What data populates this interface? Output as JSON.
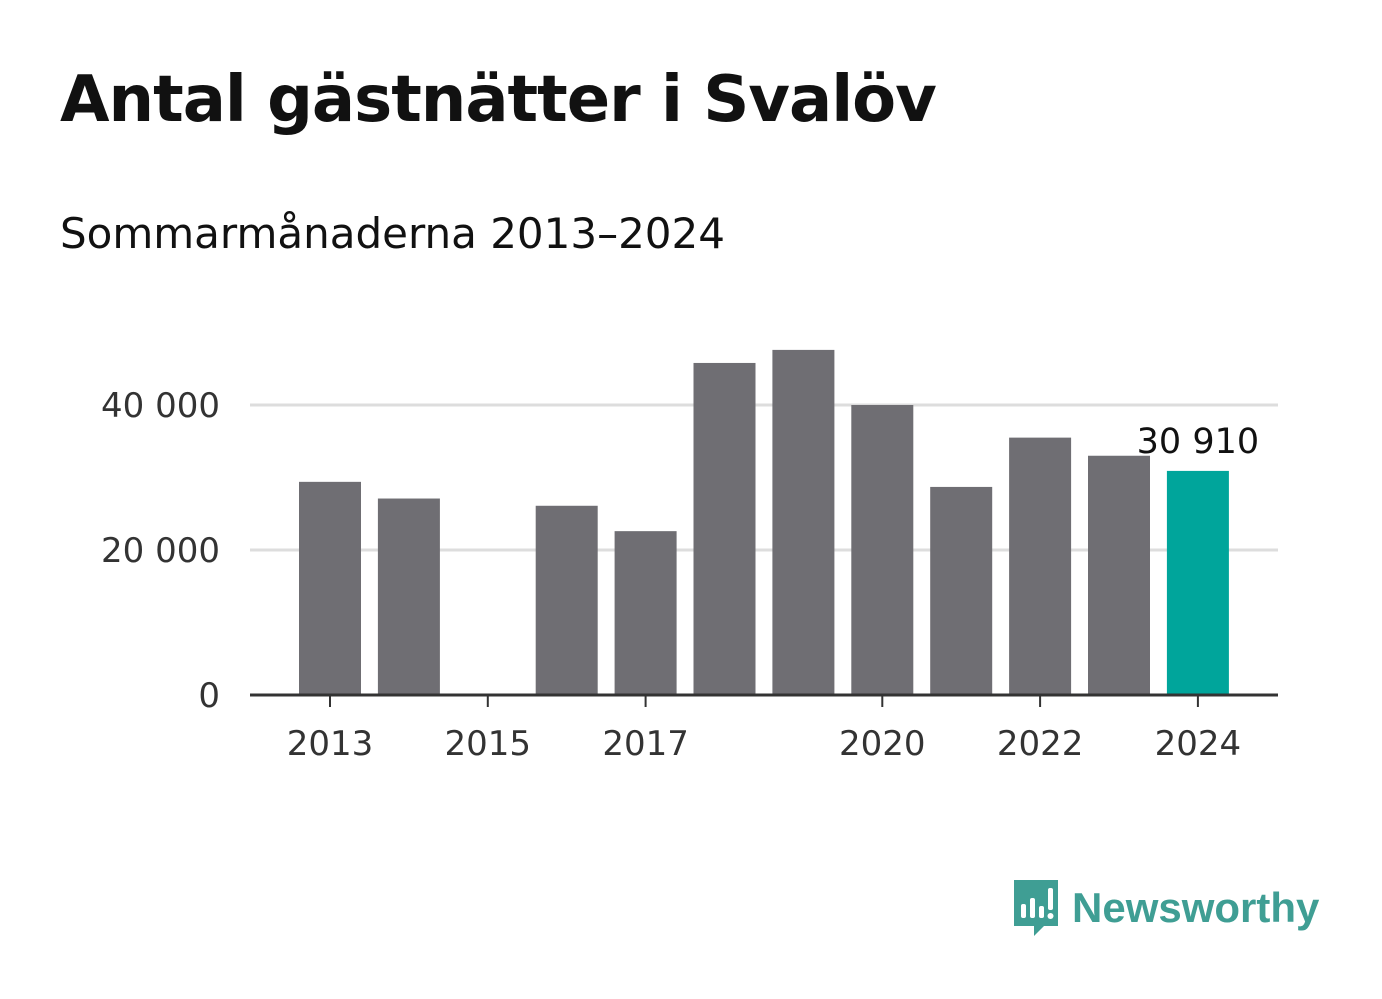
{
  "header": {
    "title": "Antal gästnätter i Svalöv",
    "subtitle": "Sommarmånaderna 2013–2024"
  },
  "chart_data": {
    "type": "bar",
    "categories": [
      "2013",
      "2014",
      "2015",
      "2016",
      "2017",
      "2018",
      "2019",
      "2020",
      "2021",
      "2022",
      "2023",
      "2024"
    ],
    "values": [
      29400,
      27100,
      null,
      26100,
      22600,
      45800,
      47600,
      40000,
      28700,
      35500,
      33000,
      30910
    ],
    "x_tick_labels": [
      "2013",
      "2015",
      "2017",
      "2020",
      "2022",
      "2024"
    ],
    "y_ticks": [
      0,
      20000,
      40000
    ],
    "y_tick_labels": [
      "0",
      "20 000",
      "40 000"
    ],
    "ylim": [
      0,
      50000
    ],
    "grid": true,
    "highlight": {
      "category": "2024",
      "label": "30 910"
    },
    "colors": {
      "bar": "#6f6e73",
      "highlight": "#00a59b",
      "grid": "#dddddd",
      "axis": "#333333"
    }
  },
  "branding": {
    "logo_text": "Newsworthy",
    "logo_icon": "newsworthy-chart-bubble-icon",
    "logo_color": "#3f9e94"
  }
}
